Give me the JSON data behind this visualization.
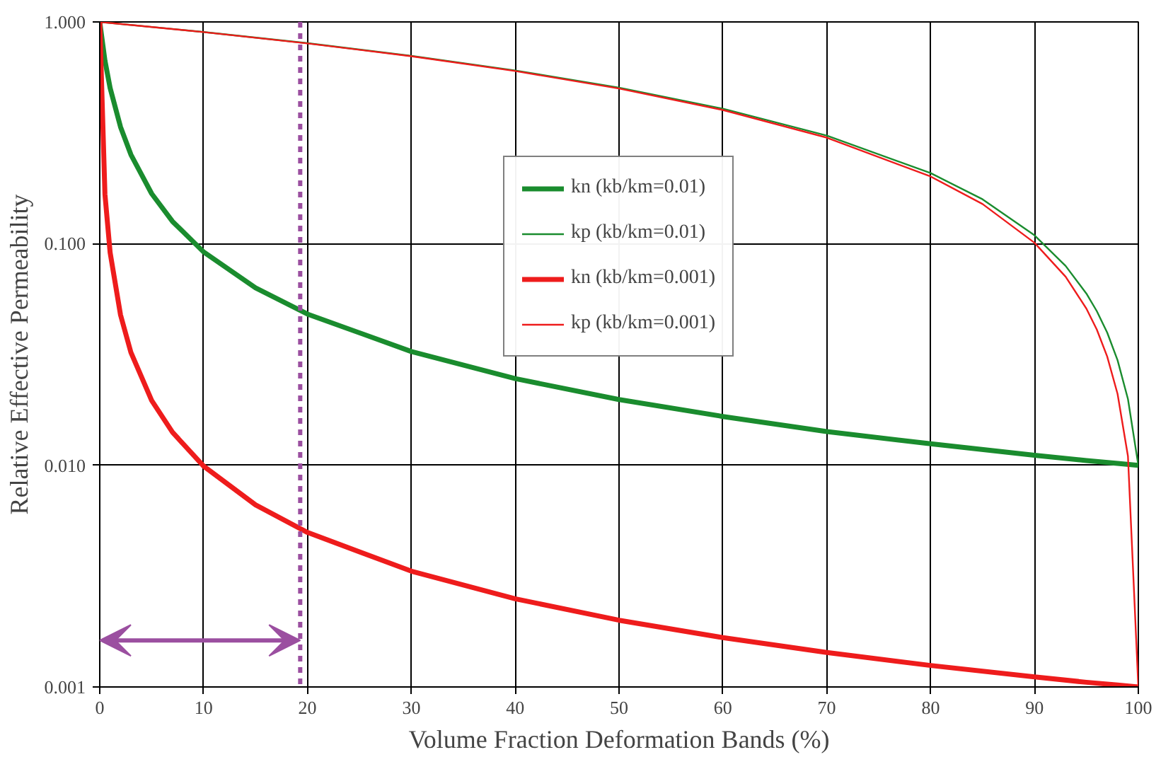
{
  "chart_data": {
    "type": "line",
    "xlabel": "Volume Fraction Deformation Bands (%)",
    "ylabel": "Relative Effective Permeability",
    "log": "y",
    "grid": true,
    "legend": "top",
    "line_style": "solid",
    "marker": "none",
    "xlim": [
      0,
      100
    ],
    "xticks": [
      0,
      10,
      20,
      30,
      40,
      50,
      60,
      70,
      80,
      90,
      100
    ],
    "ylim": [
      0.001,
      1
    ],
    "yticks": [
      {
        "value": 0.001,
        "label": "0.001"
      },
      {
        "value": 0.01,
        "label": "0.010"
      },
      {
        "value": 0.1,
        "label": "0.100"
      },
      {
        "value": 1,
        "label": "1.000"
      }
    ],
    "series": [
      {
        "name": "kn (kb/km=0.01)",
        "color": "#1a8c2e",
        "x": [
          0,
          0.5,
          1,
          2,
          3,
          5,
          7,
          10,
          15,
          20,
          30,
          40,
          50,
          60,
          70,
          80,
          90,
          95,
          98,
          100
        ],
        "values": [
          1,
          0.669,
          0.503,
          0.336,
          0.252,
          0.168,
          0.126,
          0.0917,
          0.0631,
          0.0481,
          0.0326,
          0.0246,
          0.0198,
          0.0166,
          0.0142,
          0.0125,
          0.0111,
          0.0105,
          0.0102,
          0.01
        ]
      },
      {
        "name": "kp (kb/km=0.01)",
        "color": "#1a8c2e",
        "x": [
          0,
          10,
          20,
          30,
          40,
          50,
          60,
          70,
          80,
          85,
          90,
          93,
          95,
          96,
          97,
          98,
          99,
          100
        ],
        "values": [
          1,
          0.901,
          0.802,
          0.703,
          0.604,
          0.505,
          0.406,
          0.307,
          0.208,
          0.1585,
          0.109,
          0.0793,
          0.0595,
          0.0496,
          0.0397,
          0.0298,
          0.0199,
          0.01
        ]
      },
      {
        "name": "kn (kb/km=0.001)",
        "color": "#ee1c1c",
        "x": [
          0,
          0.5,
          1,
          2,
          3,
          5,
          7,
          10,
          15,
          20,
          30,
          40,
          50,
          60,
          70,
          80,
          90,
          95,
          98,
          100
        ],
        "values": [
          1,
          0.1668,
          0.091,
          0.0477,
          0.0323,
          0.0196,
          0.0141,
          0.00991,
          0.00663,
          0.00498,
          0.00333,
          0.0025,
          0.002,
          0.00167,
          0.00143,
          0.00125,
          0.00111,
          0.00105,
          0.00102,
          0.001
        ]
      },
      {
        "name": "kp (kb/km=0.001)",
        "color": "#ee1c1c",
        "x": [
          0,
          10,
          20,
          30,
          40,
          50,
          60,
          70,
          80,
          85,
          90,
          93,
          95,
          96,
          97,
          98,
          99,
          100
        ],
        "values": [
          1,
          0.9001,
          0.8002,
          0.7003,
          0.6004,
          0.5005,
          0.4006,
          0.3007,
          0.2008,
          0.15085,
          0.1009,
          0.07093,
          0.0509,
          0.04096,
          0.03097,
          0.021,
          0.011,
          0.001
        ]
      }
    ],
    "ref_lines": [
      {
        "axis": "x",
        "value": 19.3,
        "label": null,
        "color": "#9b4fa0",
        "line_style": "dashed"
      }
    ]
  }
}
